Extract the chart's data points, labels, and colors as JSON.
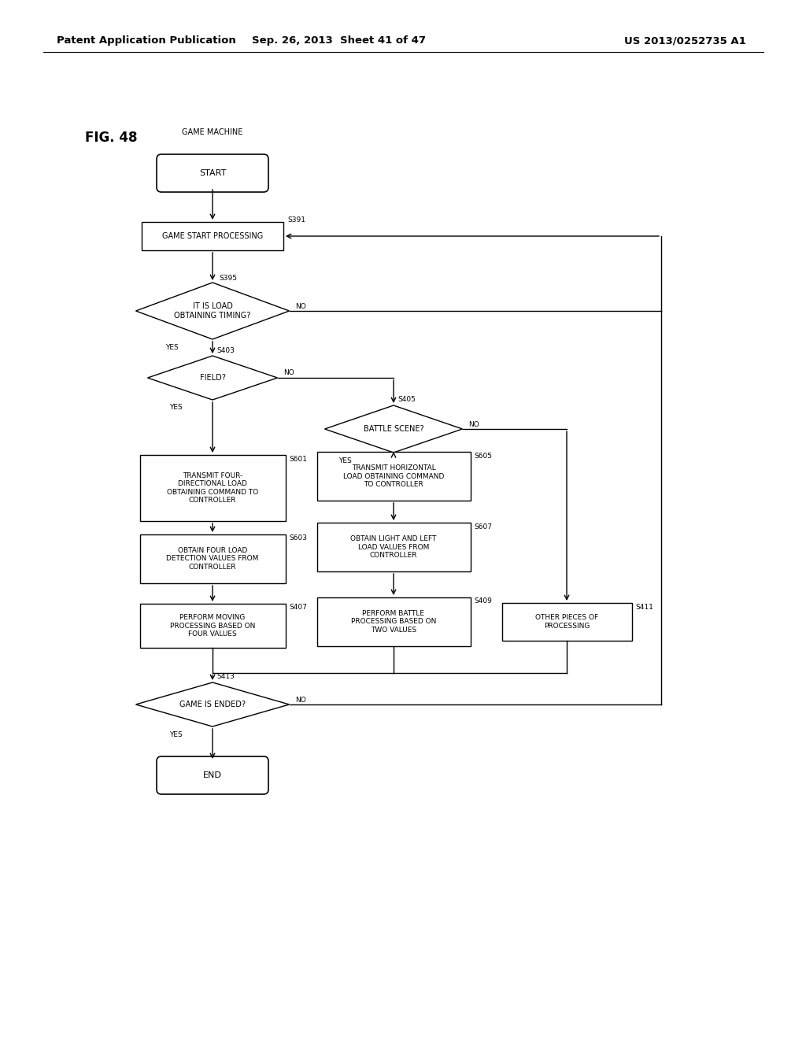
{
  "title": "FIG. 48",
  "header_left": "Patent Application Publication",
  "header_mid": "Sep. 26, 2013  Sheet 41 of 47",
  "header_right": "US 2013/0252735 A1",
  "label_game_machine": "GAME MACHINE",
  "bg_color": "#ffffff",
  "line_color": "#000000",
  "text_color": "#000000",
  "font_size": 7.0,
  "header_font_size": 9.5
}
